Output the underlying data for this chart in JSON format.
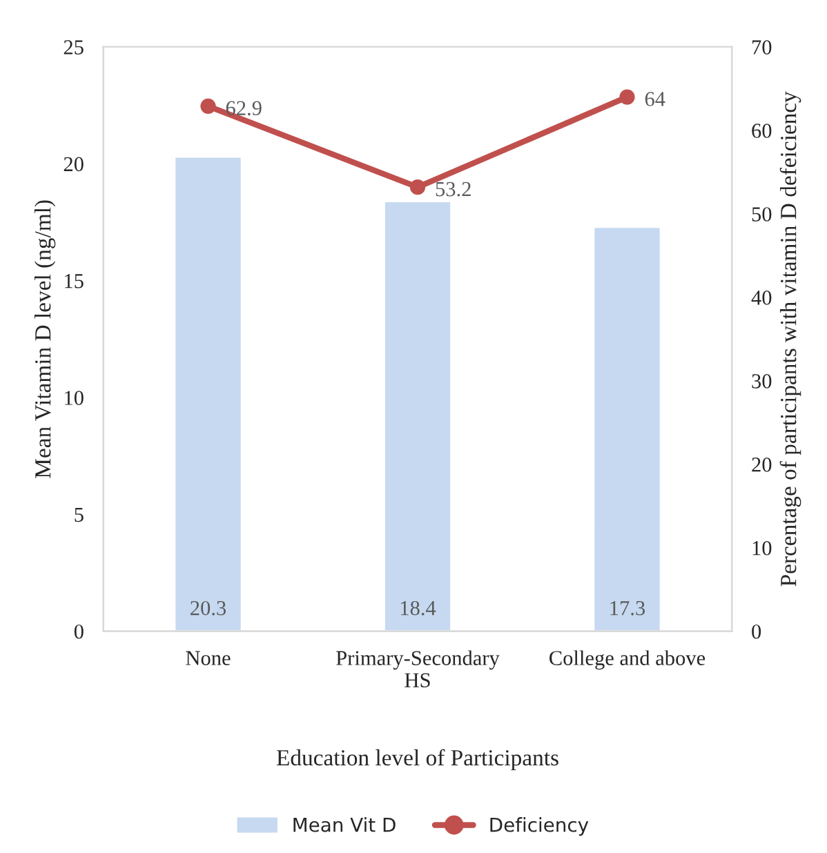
{
  "chart_data": {
    "type": "bar",
    "categories": [
      "None",
      "Primary-Secondary\nHS",
      "College and above"
    ],
    "xlabel": "Education level of Participants",
    "ylabel": "Mean Vitamin D level (ng/ml)",
    "y2label": "Percentage of participants with vitamin D defeiciency",
    "series": [
      {
        "name": "Mean Vit D",
        "color": "#c6d9f0",
        "values": [
          20.3,
          18.4,
          17.3
        ]
      },
      {
        "name": "Deficiency",
        "type": "line",
        "axis": "y2",
        "color": "#c0504d",
        "values": [
          62.9,
          53.2,
          64
        ]
      }
    ],
    "data_labels": true,
    "marker": "circle",
    "line_style": "solid",
    "ylim": [
      0,
      25
    ],
    "yticks": [
      0,
      5,
      10,
      15,
      20,
      25
    ],
    "y2lim": [
      0,
      70
    ],
    "y2ticks": [
      0,
      10,
      20,
      30,
      40,
      50,
      60,
      70
    ],
    "grid": false,
    "legend": "bottom"
  }
}
